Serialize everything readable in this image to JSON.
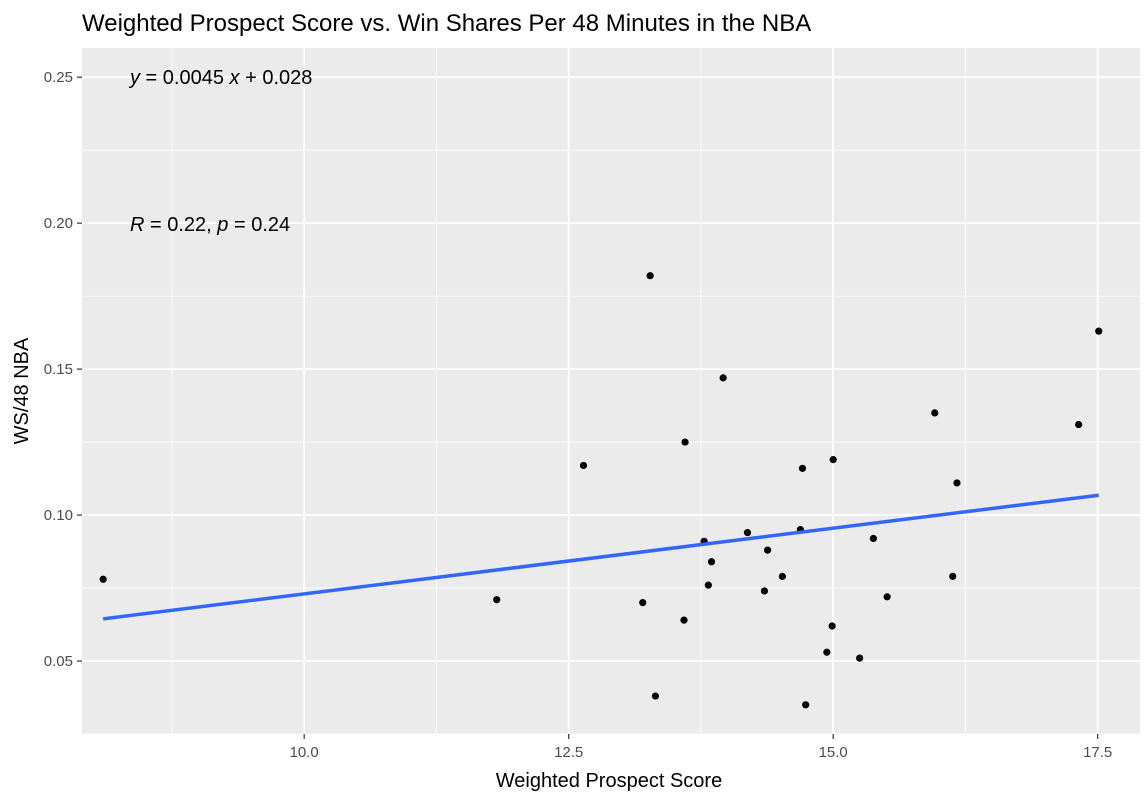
{
  "chart_data": {
    "type": "scatter",
    "title": "Weighted Prospect Score vs. Win Shares Per 48 Minutes in the NBA",
    "xlabel": "Weighted Prospect Score",
    "ylabel": "WS/48 NBA",
    "xlim": [
      7.9,
      17.9
    ],
    "ylim": [
      0.025,
      0.26
    ],
    "x_ticks": [
      10.0,
      12.5,
      15.0,
      17.5
    ],
    "x_tick_labels": [
      "10.0",
      "12.5",
      "15.0",
      "17.5"
    ],
    "y_ticks": [
      0.05,
      0.1,
      0.15,
      0.2,
      0.25
    ],
    "y_tick_labels": [
      "0.05",
      "0.10",
      "0.15",
      "0.20",
      "0.25"
    ],
    "grid": true,
    "panel_color": "#ebebeb",
    "grid_color": "#ffffff",
    "point_color": "#000000",
    "line_color": "#3366ff",
    "points": [
      {
        "x": 8.1,
        "y": 0.078
      },
      {
        "x": 11.82,
        "y": 0.071
      },
      {
        "x": 12.64,
        "y": 0.117
      },
      {
        "x": 13.2,
        "y": 0.07
      },
      {
        "x": 13.27,
        "y": 0.182
      },
      {
        "x": 13.32,
        "y": 0.038
      },
      {
        "x": 13.59,
        "y": 0.064
      },
      {
        "x": 13.6,
        "y": 0.125
      },
      {
        "x": 13.78,
        "y": 0.091
      },
      {
        "x": 13.82,
        "y": 0.076
      },
      {
        "x": 13.85,
        "y": 0.084
      },
      {
        "x": 13.96,
        "y": 0.147
      },
      {
        "x": 14.19,
        "y": 0.094
      },
      {
        "x": 14.35,
        "y": 0.074
      },
      {
        "x": 14.38,
        "y": 0.088
      },
      {
        "x": 14.52,
        "y": 0.079
      },
      {
        "x": 14.69,
        "y": 0.095
      },
      {
        "x": 14.71,
        "y": 0.116
      },
      {
        "x": 14.74,
        "y": 0.035
      },
      {
        "x": 14.94,
        "y": 0.053
      },
      {
        "x": 14.99,
        "y": 0.062
      },
      {
        "x": 15.0,
        "y": 0.119
      },
      {
        "x": 15.25,
        "y": 0.051
      },
      {
        "x": 15.38,
        "y": 0.092
      },
      {
        "x": 15.51,
        "y": 0.072
      },
      {
        "x": 15.96,
        "y": 0.135
      },
      {
        "x": 16.13,
        "y": 0.079
      },
      {
        "x": 16.17,
        "y": 0.111
      },
      {
        "x": 17.32,
        "y": 0.131
      },
      {
        "x": 17.51,
        "y": 0.163
      }
    ],
    "regression": {
      "slope": 0.0045,
      "intercept": 0.028,
      "x_range": [
        8.1,
        17.51
      ]
    },
    "annotations": {
      "equation": {
        "y_var": "y",
        "eq1": " = 0.0045 ",
        "x_var": "x",
        "eq2": " + 0.028"
      },
      "stats": {
        "r_var": "R",
        "r_val": " = 0.22, ",
        "p_var": "p",
        "p_val": " = 0.24"
      }
    }
  }
}
